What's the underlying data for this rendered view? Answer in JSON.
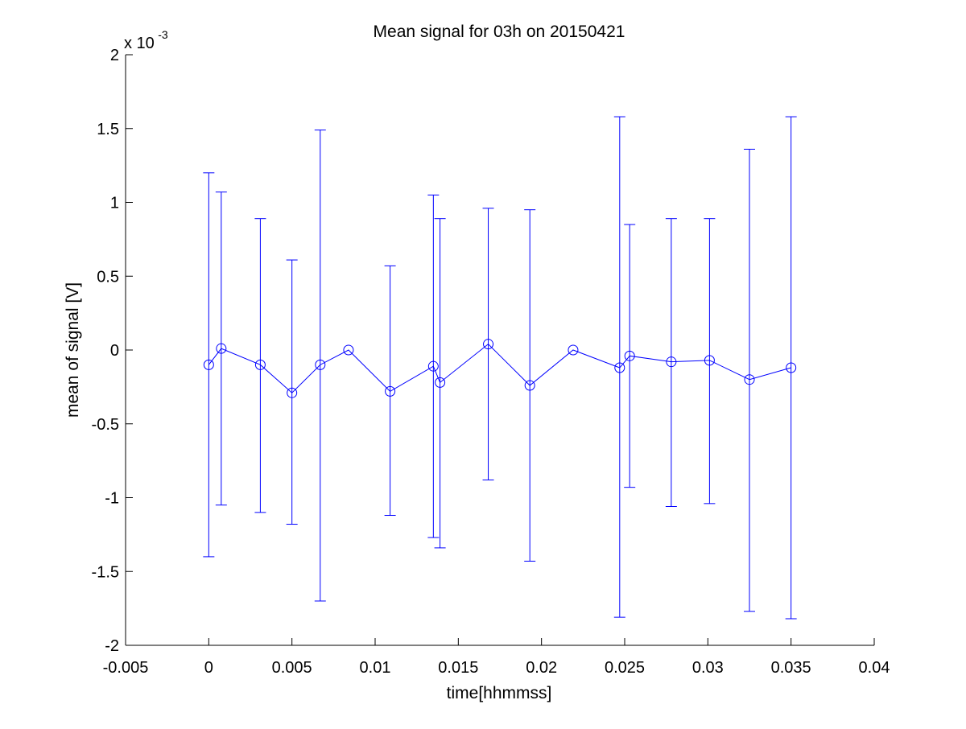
{
  "chart_data": {
    "type": "scatter",
    "title": "Mean signal for 03h on 20150421",
    "xlabel": "time[hhmmss]",
    "ylabel": "mean of signal [V]",
    "xlim": [
      -0.005,
      0.04
    ],
    "ylim": [
      -0.002,
      0.002
    ],
    "x_ticks": [
      -0.005,
      0,
      0.005,
      0.01,
      0.015,
      0.02,
      0.025,
      0.03,
      0.035,
      0.04
    ],
    "x_tick_labels": [
      "-0.005",
      "0",
      "0.005",
      "0.01",
      "0.015",
      "0.02",
      "0.025",
      "0.03",
      "0.035",
      "0.04"
    ],
    "y_ticks": [
      -2,
      -1.5,
      -1,
      -0.5,
      0,
      0.5,
      1,
      1.5,
      2
    ],
    "y_tick_labels": [
      "-2",
      "-1.5",
      "-1",
      "-0.5",
      "0",
      "0.5",
      "1",
      "1.5",
      "2"
    ],
    "y_multiplier_base": "x 10",
    "y_multiplier_exponent": "-3",
    "y_scale_factor": 0.001,
    "grid": false,
    "legend": "none",
    "line_color": "#0000ff",
    "marker": "circle",
    "series": [
      {
        "x": [
          0,
          0.00075,
          0.0031,
          0.005,
          0.0067,
          0.0084,
          0.0109,
          0.0135,
          0.0139,
          0.0168,
          0.0193,
          0.0219,
          0.0247,
          0.0253,
          0.0278,
          0.0301,
          0.0325,
          0.035
        ],
        "y": [
          -0.0001,
          1e-05,
          -0.0001,
          -0.00029,
          -0.0001,
          0,
          -0.00028,
          -0.00011,
          -0.00022,
          4e-05,
          -0.00024,
          0,
          -0.00012,
          -4e-05,
          -8e-05,
          -7e-05,
          -0.0002,
          -0.00012
        ],
        "err_high": [
          0.0012,
          0.00107,
          0.00089,
          0.00061,
          0.00149,
          null,
          0.00057,
          0.00105,
          0.00089,
          0.00096,
          0.00095,
          null,
          0.00158,
          0.00085,
          0.00089,
          0.00089,
          0.00136,
          0.00158
        ],
        "err_low": [
          -0.0014,
          -0.00105,
          -0.0011,
          -0.00118,
          -0.0017,
          null,
          -0.00112,
          -0.00127,
          -0.00134,
          -0.00088,
          -0.00143,
          null,
          -0.00181,
          -0.00093,
          -0.00106,
          -0.00104,
          -0.00177,
          -0.00182
        ]
      }
    ]
  }
}
